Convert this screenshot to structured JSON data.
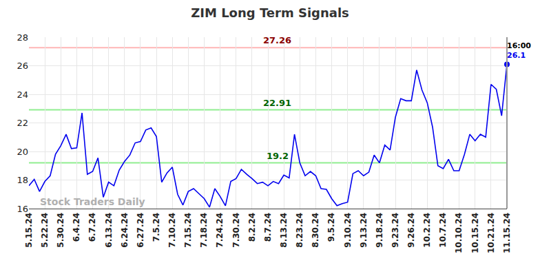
{
  "chart_data": {
    "type": "line",
    "title": "ZIM Long Term Signals",
    "watermark": "Stock Traders Daily",
    "color": "#0000ee",
    "grid": true,
    "categories": [
      "5.15.24",
      null,
      null,
      "5.22.24",
      null,
      null,
      "5.30.24",
      null,
      null,
      "6.4.24",
      null,
      null,
      "6.7.24",
      null,
      null,
      "6.13.24",
      null,
      null,
      "6.24.24",
      null,
      null,
      "6.27.24",
      null,
      null,
      "7.5.24",
      null,
      null,
      "7.10.24",
      null,
      null,
      "7.15.24",
      null,
      null,
      "7.18.24",
      null,
      null,
      "7.24.24",
      null,
      null,
      "7.30.24",
      null,
      null,
      "8.2.24",
      null,
      null,
      "8.7.24",
      null,
      null,
      "8.13.24",
      null,
      null,
      "8.23.24",
      null,
      null,
      "8.30.24",
      null,
      null,
      "9.5.24",
      null,
      null,
      "9.10.24",
      null,
      null,
      "9.13.24",
      null,
      null,
      "9.18.24",
      null,
      null,
      "9.23.24",
      null,
      null,
      "9.26.24",
      null,
      null,
      "10.2.24",
      null,
      null,
      "10.7.24",
      null,
      null,
      "10.10.24",
      null,
      null,
      "10.15.24",
      null,
      null,
      "10.21.24",
      null,
      null,
      "11.15.24"
    ],
    "values": [
      17.6,
      18.05,
      17.2,
      17.9,
      18.3,
      19.8,
      20.4,
      21.2,
      20.2,
      20.25,
      22.7,
      18.4,
      18.6,
      19.55,
      16.8,
      17.85,
      17.6,
      18.7,
      19.3,
      19.75,
      20.6,
      20.7,
      21.5,
      21.65,
      21.05,
      17.85,
      18.5,
      18.9,
      17.0,
      16.25,
      17.2,
      17.4,
      17.05,
      16.7,
      16.1,
      17.4,
      16.85,
      16.2,
      17.9,
      18.1,
      18.75,
      18.4,
      18.1,
      17.75,
      17.85,
      17.6,
      17.9,
      17.75,
      18.35,
      18.15,
      21.2,
      19.2,
      18.3,
      18.6,
      18.3,
      17.4,
      17.35,
      16.7,
      16.2,
      16.35,
      16.45,
      18.45,
      18.65,
      18.3,
      18.55,
      19.75,
      19.2,
      20.45,
      20.1,
      22.4,
      23.7,
      23.55,
      23.55,
      25.7,
      24.3,
      23.4,
      21.7,
      19.0,
      18.8,
      19.45,
      18.65,
      18.65,
      19.8,
      21.2,
      20.75,
      21.2,
      21.0,
      24.7,
      24.35,
      22.5,
      26.1
    ],
    "ylim": [
      16,
      28
    ],
    "yticks": [
      16,
      18,
      20,
      22,
      24,
      26,
      28
    ],
    "levels": [
      {
        "value": 27.26,
        "label": "27.26",
        "color": "#ffb6b6",
        "label_color": "#8b0000"
      },
      {
        "value": 22.91,
        "label": "22.91",
        "color": "#90ee90",
        "label_color": "#006400"
      },
      {
        "value": 19.2,
        "label": "19.2",
        "color": "#90ee90",
        "label_color": "#006400"
      }
    ],
    "last_point": {
      "time_label": "16:00",
      "value_label": "26.1",
      "color": "#0000ee"
    }
  }
}
